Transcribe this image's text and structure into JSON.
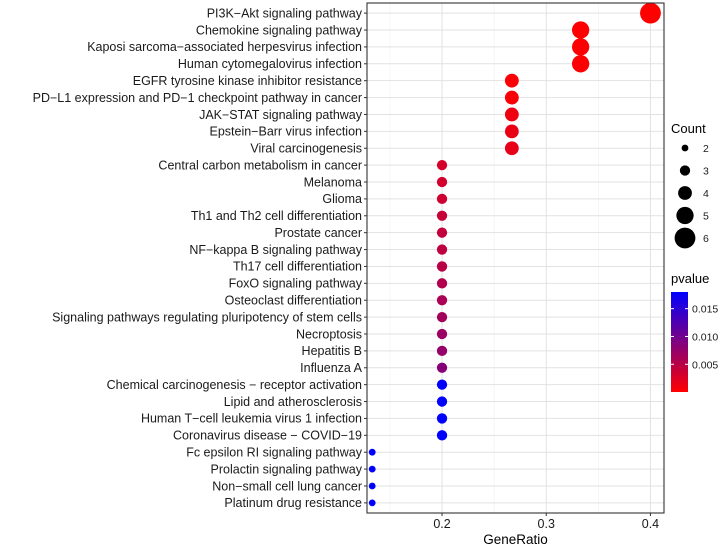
{
  "chart_data": {
    "type": "scatter",
    "xlabel": "GeneRatio",
    "xlim": [
      0.128,
      0.413
    ],
    "xticks": [
      0.2,
      0.3,
      0.4
    ],
    "xtick_labels": [
      "0.2",
      "0.3",
      "0.4"
    ],
    "grid": true,
    "legend_position": "right",
    "points": [
      {
        "term": "PI3K−Akt signaling pathway",
        "gene_ratio": 0.4,
        "count": 6,
        "pvalue": 1e-05
      },
      {
        "term": "Chemokine signaling pathway",
        "gene_ratio": 0.333,
        "count": 5,
        "pvalue": 0.0001
      },
      {
        "term": "Kaposi sarcoma−associated herpesvirus infection",
        "gene_ratio": 0.333,
        "count": 5,
        "pvalue": 0.0002
      },
      {
        "term": "Human cytomegalovirus infection",
        "gene_ratio": 0.333,
        "count": 5,
        "pvalue": 0.0002
      },
      {
        "term": "EGFR tyrosine kinase inhibitor resistance",
        "gene_ratio": 0.267,
        "count": 4,
        "pvalue": 0.0003
      },
      {
        "term": "PD−L1 expression and PD−1 checkpoint pathway in cancer",
        "gene_ratio": 0.267,
        "count": 4,
        "pvalue": 0.0004
      },
      {
        "term": "JAK−STAT signaling pathway",
        "gene_ratio": 0.267,
        "count": 4,
        "pvalue": 0.0012
      },
      {
        "term": "Epstein−Barr virus infection",
        "gene_ratio": 0.267,
        "count": 4,
        "pvalue": 0.0015
      },
      {
        "term": "Viral carcinogenesis",
        "gene_ratio": 0.267,
        "count": 4,
        "pvalue": 0.0017
      },
      {
        "term": "Central carbon metabolism in cancer",
        "gene_ratio": 0.2,
        "count": 3,
        "pvalue": 0.003
      },
      {
        "term": "Melanoma",
        "gene_ratio": 0.2,
        "count": 3,
        "pvalue": 0.0032
      },
      {
        "term": "Glioma",
        "gene_ratio": 0.2,
        "count": 3,
        "pvalue": 0.0035
      },
      {
        "term": "Th1 and Th2 cell differentiation",
        "gene_ratio": 0.2,
        "count": 3,
        "pvalue": 0.004
      },
      {
        "term": "Prostate cancer",
        "gene_ratio": 0.2,
        "count": 3,
        "pvalue": 0.0043
      },
      {
        "term": "NF−kappa B signaling pathway",
        "gene_ratio": 0.2,
        "count": 3,
        "pvalue": 0.0045
      },
      {
        "term": "Th17 cell differentiation",
        "gene_ratio": 0.2,
        "count": 3,
        "pvalue": 0.005
      },
      {
        "term": "FoxO signaling pathway",
        "gene_ratio": 0.2,
        "count": 3,
        "pvalue": 0.0055
      },
      {
        "term": "Osteoclast differentiation",
        "gene_ratio": 0.2,
        "count": 3,
        "pvalue": 0.006
      },
      {
        "term": "Signaling pathways regulating pluripotency of stem cells",
        "gene_ratio": 0.2,
        "count": 3,
        "pvalue": 0.0065
      },
      {
        "term": "Necroptosis",
        "gene_ratio": 0.2,
        "count": 3,
        "pvalue": 0.007
      },
      {
        "term": "Hepatitis B",
        "gene_ratio": 0.2,
        "count": 3,
        "pvalue": 0.0075
      },
      {
        "term": "Influenza A",
        "gene_ratio": 0.2,
        "count": 3,
        "pvalue": 0.0085
      },
      {
        "term": "Chemical carcinogenesis − receptor activation",
        "gene_ratio": 0.2,
        "count": 3,
        "pvalue": 0.018
      },
      {
        "term": "Lipid and atherosclerosis",
        "gene_ratio": 0.2,
        "count": 3,
        "pvalue": 0.018
      },
      {
        "term": "Human T−cell leukemia virus 1 infection",
        "gene_ratio": 0.2,
        "count": 3,
        "pvalue": 0.018
      },
      {
        "term": "Coronavirus disease − COVID−19",
        "gene_ratio": 0.2,
        "count": 3,
        "pvalue": 0.018
      },
      {
        "term": "Fc epsilon RI signaling pathway",
        "gene_ratio": 0.133,
        "count": 2,
        "pvalue": 0.018
      },
      {
        "term": "Prolactin signaling pathway",
        "gene_ratio": 0.133,
        "count": 2,
        "pvalue": 0.018
      },
      {
        "term": "Non−small cell lung cancer",
        "gene_ratio": 0.133,
        "count": 2,
        "pvalue": 0.018
      },
      {
        "term": "Platinum drug resistance",
        "gene_ratio": 0.133,
        "count": 2,
        "pvalue": 0.018
      }
    ],
    "size_legend": {
      "title": "Count",
      "levels": [
        2,
        3,
        4,
        5,
        6
      ],
      "labels": [
        "2",
        "3",
        "4",
        "5",
        "6"
      ]
    },
    "color_legend": {
      "title": "pvalue",
      "range": [
        1e-05,
        0.018
      ],
      "ticks": [
        0.005,
        0.01,
        0.015
      ],
      "tick_labels": [
        "0.005",
        "0.010",
        "0.015"
      ],
      "low_color": "#ff0000",
      "high_color": "#0000ff"
    }
  }
}
